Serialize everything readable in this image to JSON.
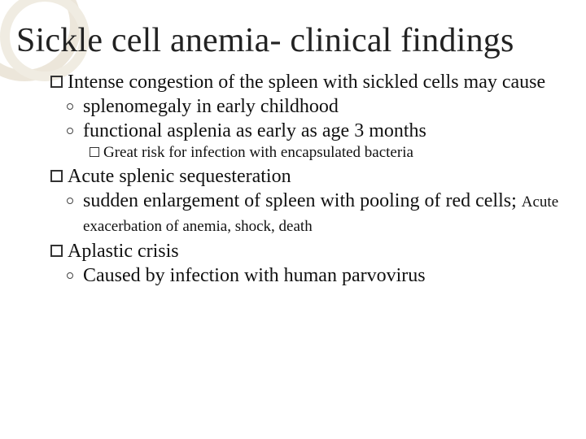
{
  "background_color": "#ffffff",
  "decoration": {
    "ring_colors": [
      "#ece6da",
      "#f0ece2"
    ]
  },
  "title": {
    "text": "Sickle cell anemia- clinical findings",
    "fontsize": 42,
    "color": "#222222"
  },
  "body": {
    "fontsize_main": 24,
    "fontsize_small": 19,
    "text_color": "#111111",
    "bullet_border_color": "#333333"
  },
  "items": [
    {
      "lead": "Intense",
      "rest": " congestion of the spleen with sickled cells may cause",
      "sub": [
        {
          "text": "splenomegaly in early childhood"
        },
        {
          "text": "functional asplenia as early as age 3 months",
          "subsub": [
            {
              "lead": "Great",
              "rest": " risk for infection with encapsulated bacteria"
            }
          ]
        }
      ]
    },
    {
      "lead": "Acute",
      "rest": " splenic sequesteration",
      "sub": [
        {
          "text": "sudden enlargement of spleen with pooling of red cells; ",
          "tail_small": "Acute exacerbation of anemia, shock, death"
        }
      ]
    },
    {
      "lead": "Aplastic",
      "rest": " crisis",
      "sub": [
        {
          "text": "Caused by infection with human parvovirus"
        }
      ]
    }
  ]
}
